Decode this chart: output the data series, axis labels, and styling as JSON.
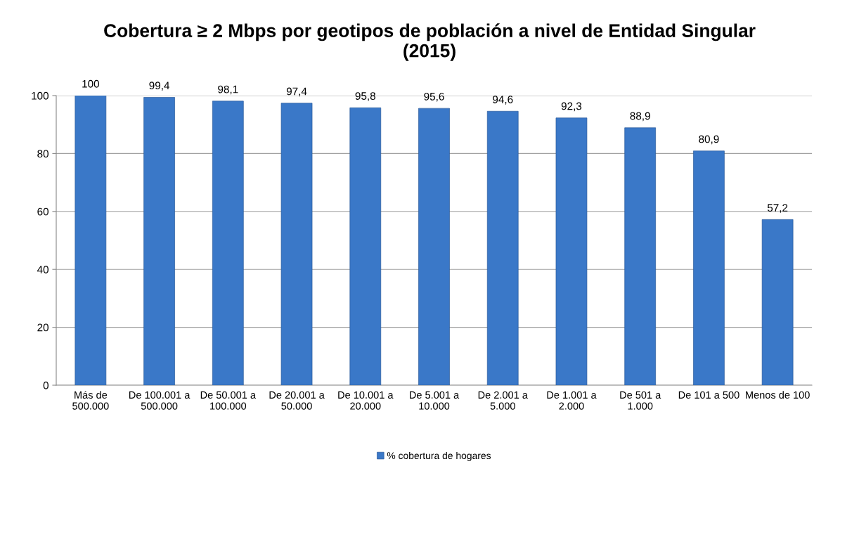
{
  "chart_data": {
    "type": "bar",
    "title": "Cobertura ≥ 2 Mbps por geotipos de población a nivel de Entidad Singular\n(2015)",
    "categories": [
      "Más de\n500.000",
      "De 100.001 a\n500.000",
      "De 50.001 a\n100.000",
      "De 20.001 a\n50.000",
      "De 10.001 a\n20.000",
      "De 5.001 a\n10.000",
      "De 2.001 a\n5.000",
      "De 1.001 a\n2.000",
      "De 501 a\n1.000",
      "De 101 a 500",
      "Menos de 100"
    ],
    "series": [
      {
        "name": "% cobertura de hogares",
        "color": "#3a78c8",
        "values": [
          100,
          99.4,
          98.1,
          97.4,
          95.8,
          95.6,
          94.6,
          92.3,
          88.9,
          80.9,
          57.2
        ],
        "value_labels": [
          "100",
          "99,4",
          "98,1",
          "97,4",
          "95,8",
          "95,6",
          "94,6",
          "92,3",
          "88,9",
          "80,9",
          "57,2"
        ]
      }
    ],
    "ylim": [
      0,
      100
    ],
    "yticks": [
      0,
      20,
      40,
      60,
      80,
      100
    ],
    "grid": "y",
    "legend": "bottom"
  }
}
